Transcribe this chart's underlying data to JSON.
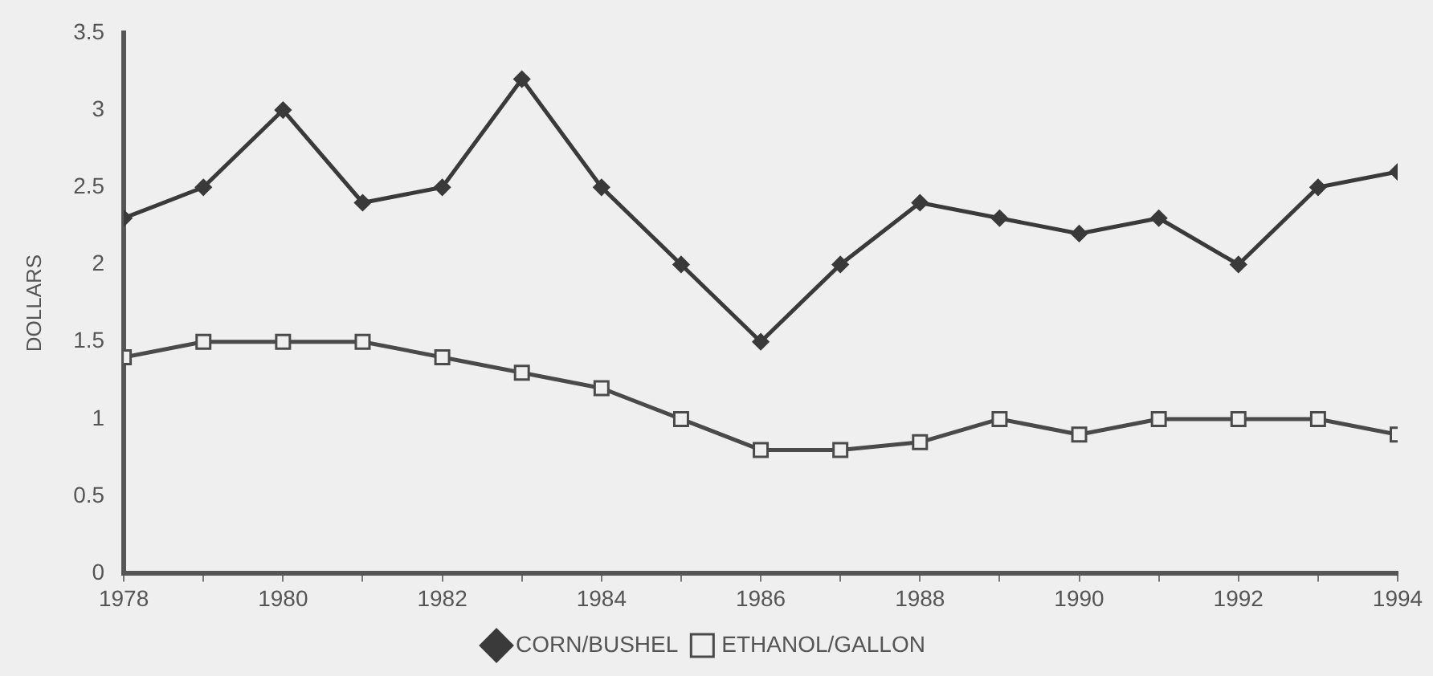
{
  "chart_data": {
    "type": "line",
    "ylabel": "DOLLARS",
    "x": [
      1978,
      1979,
      1980,
      1981,
      1982,
      1983,
      1984,
      1985,
      1986,
      1987,
      1988,
      1989,
      1990,
      1991,
      1992,
      1993,
      1994
    ],
    "series": [
      {
        "name": "CORN/BUSHEL",
        "color": "#3a3a3a",
        "marker": "diamond",
        "values": [
          2.3,
          2.5,
          3.0,
          2.4,
          2.5,
          3.2,
          2.5,
          2.0,
          1.5,
          2.0,
          2.4,
          2.3,
          2.2,
          2.3,
          2.0,
          2.5,
          2.6
        ]
      },
      {
        "name": "ETHANOL/GALLON",
        "color": "#4a4a4a",
        "marker": "square",
        "values": [
          1.4,
          1.5,
          1.5,
          1.5,
          1.4,
          1.3,
          1.2,
          1.0,
          0.8,
          0.8,
          0.85,
          1.0,
          0.9,
          1.0,
          1.0,
          1.0,
          0.9
        ]
      }
    ],
    "xlim": [
      1978,
      1994
    ],
    "xticks": [
      1978,
      {
        "value": 1979,
        "label": null
      },
      1980,
      {
        "value": 1981,
        "label": null
      },
      1982,
      {
        "value": 1983,
        "label": null
      },
      1984,
      {
        "value": 1985,
        "label": null
      },
      1986,
      {
        "value": 1987,
        "label": null
      },
      1988,
      {
        "value": 1989,
        "label": null
      },
      1990,
      {
        "value": 1991,
        "label": null
      },
      1992,
      {
        "value": 1993,
        "label": null
      },
      1994
    ],
    "ylim": [
      0,
      3.5
    ],
    "yticks": [
      0,
      0.5,
      1,
      1.5,
      2,
      2.5,
      3,
      3.5
    ],
    "grid": false,
    "legend": "bottom",
    "line_style": "solid"
  }
}
